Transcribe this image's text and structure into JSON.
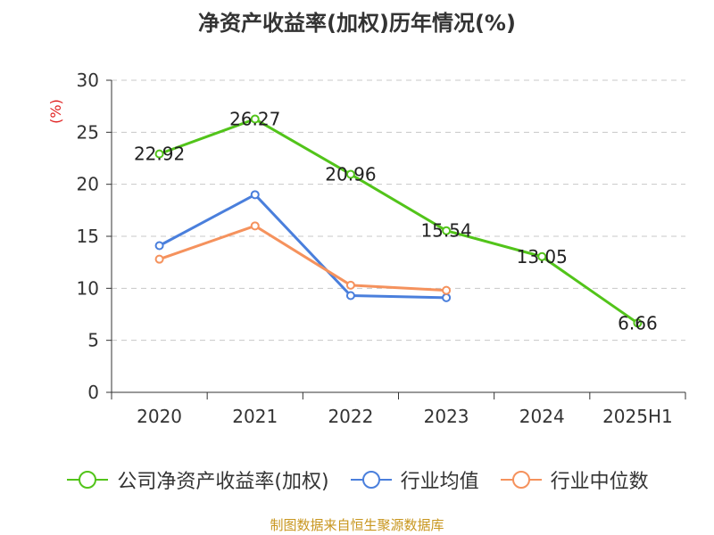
{
  "chart_data": {
    "type": "line",
    "title": "净资产收益率(加权)历年情况(%)",
    "ylabel": "(%)",
    "categories": [
      "2020",
      "2021",
      "2022",
      "2023",
      "2024",
      "2025H1"
    ],
    "ylim": [
      0,
      30
    ],
    "yticks": [
      0,
      5,
      10,
      15,
      20,
      25,
      30
    ],
    "grid": true,
    "legend_position": "bottom",
    "series": [
      {
        "name": "公司净资产收益率(加权)",
        "color": "#52c41a",
        "values": [
          22.92,
          26.27,
          20.96,
          15.54,
          13.05,
          6.66
        ],
        "labels": [
          "22.92",
          "26.27",
          "20.96",
          "15.54",
          "13.05",
          "6.66"
        ]
      },
      {
        "name": "行业均值",
        "color": "#4a7fdc",
        "values": [
          14.1,
          19.0,
          9.3,
          9.1,
          null,
          null
        ]
      },
      {
        "name": "行业中位数",
        "color": "#f5925d",
        "values": [
          12.8,
          16.0,
          10.3,
          9.8,
          null,
          null
        ]
      }
    ]
  },
  "footer": {
    "source": "制图数据来自恒生聚源数据库"
  }
}
